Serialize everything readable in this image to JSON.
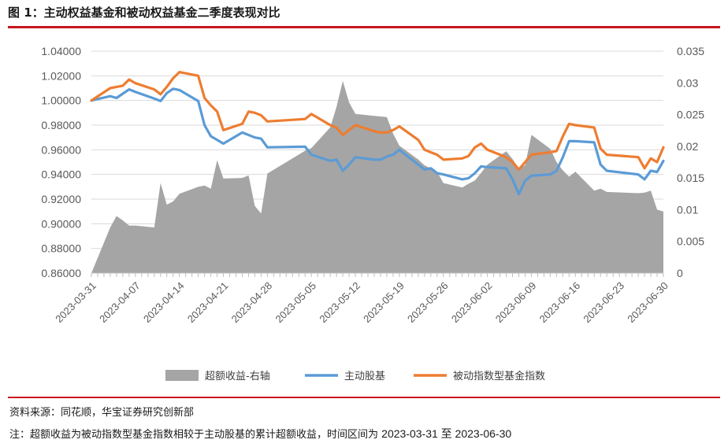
{
  "figure": {
    "title": "图 1：主动权益基金和被动权益基金二季度表现对比",
    "source": "资料来源：同花顺，华宝证券研究创新部",
    "note_prefix": "注：超额收益为被动指数型基金指数相较于主动股基的累计超额收益，时间区间为",
    "note_range": "2023-03-31 至 2023-06-30"
  },
  "chart_data": {
    "type": "line",
    "x_tick_labels": [
      "2023-03-31",
      "2023-04-07",
      "2023-04-14",
      "2023-04-21",
      "2023-04-28",
      "2023-05-05",
      "2023-05-12",
      "2023-05-19",
      "2023-05-26",
      "2023-06-02",
      "2023-06-09",
      "2023-06-16",
      "2023-06-23",
      "2023-06-30"
    ],
    "x_dates": [
      "2023-03-31",
      "2023-04-03",
      "2023-04-04",
      "2023-04-05",
      "2023-04-06",
      "2023-04-07",
      "2023-04-10",
      "2023-04-11",
      "2023-04-12",
      "2023-04-13",
      "2023-04-14",
      "2023-04-17",
      "2023-04-18",
      "2023-04-19",
      "2023-04-20",
      "2023-04-21",
      "2023-04-24",
      "2023-04-25",
      "2023-04-26",
      "2023-04-27",
      "2023-04-28",
      "2023-05-04",
      "2023-05-05",
      "2023-05-08",
      "2023-05-09",
      "2023-05-10",
      "2023-05-11",
      "2023-05-12",
      "2023-05-15",
      "2023-05-16",
      "2023-05-17",
      "2023-05-18",
      "2023-05-19",
      "2023-05-22",
      "2023-05-23",
      "2023-05-24",
      "2023-05-25",
      "2023-05-26",
      "2023-05-29",
      "2023-05-30",
      "2023-05-31",
      "2023-06-01",
      "2023-06-02",
      "2023-06-05",
      "2023-06-06",
      "2023-06-07",
      "2023-06-08",
      "2023-06-09",
      "2023-06-12",
      "2023-06-13",
      "2023-06-14",
      "2023-06-15",
      "2023-06-16",
      "2023-06-19",
      "2023-06-20",
      "2023-06-21",
      "2023-06-26",
      "2023-06-27",
      "2023-06-28",
      "2023-06-29",
      "2023-06-30"
    ],
    "y_left": {
      "ticks": [
        "0.86000",
        "0.88000",
        "0.90000",
        "0.92000",
        "0.94000",
        "0.96000",
        "0.98000",
        "1.00000",
        "1.02000",
        "1.04000"
      ],
      "min": 0.86,
      "max": 1.04
    },
    "y_right": {
      "ticks": [
        "0",
        "0.005",
        "0.01",
        "0.015",
        "0.02",
        "0.025",
        "0.03",
        "0.035"
      ],
      "min": 0,
      "max": 0.035
    },
    "grid": "horizontal",
    "legend_position": "bottom",
    "series": [
      {
        "name": "超额收益-右轴",
        "kind": "area",
        "axis": "right",
        "color": "#a5a5a5",
        "values": [
          0,
          0.0072,
          0.009,
          0.0083,
          0.0075,
          0.0075,
          0.0072,
          0.0142,
          0.0108,
          0.0113,
          0.0125,
          0.0136,
          0.0138,
          0.0133,
          0.0178,
          0.0149,
          0.015,
          0.0154,
          0.0106,
          0.0094,
          0.0157,
          0.0193,
          0.0197,
          0.023,
          0.0262,
          0.0303,
          0.0269,
          0.0251,
          0.0248,
          0.0247,
          0.0246,
          0.022,
          0.0201,
          0.0179,
          0.017,
          0.0165,
          0.016,
          0.0142,
          0.0135,
          0.0141,
          0.0146,
          0.0158,
          0.0171,
          0.0192,
          0.018,
          0.0165,
          0.017,
          0.0218,
          0.0196,
          0.0175,
          0.0162,
          0.0152,
          0.016,
          0.013,
          0.0133,
          0.0128,
          0.0126,
          0.0127,
          0.013,
          0.01,
          0.0097
        ]
      },
      {
        "name": "主动股基",
        "kind": "line",
        "axis": "left",
        "color": "#5b9bd5",
        "values": [
          1.0,
          1.0035,
          1.002,
          1.0055,
          1.009,
          1.007,
          1.0015,
          0.9995,
          1.006,
          1.0095,
          1.0085,
          0.9995,
          0.98,
          0.971,
          0.968,
          0.965,
          0.974,
          0.972,
          0.97,
          0.969,
          0.962,
          0.9625,
          0.956,
          0.951,
          0.952,
          0.943,
          0.948,
          0.954,
          0.952,
          0.952,
          0.9545,
          0.956,
          0.96,
          0.948,
          0.944,
          0.945,
          0.941,
          0.94,
          0.936,
          0.937,
          0.941,
          0.9465,
          0.946,
          0.945,
          0.936,
          0.924,
          0.935,
          0.939,
          0.94,
          0.943,
          0.954,
          0.967,
          0.967,
          0.966,
          0.948,
          0.943,
          0.94,
          0.936,
          0.943,
          0.942,
          0.951
        ]
      },
      {
        "name": "被动指数型基金指数",
        "kind": "line",
        "axis": "left",
        "color": "#ed7d31",
        "values": [
          1.0,
          1.01,
          1.011,
          1.012,
          1.017,
          1.014,
          1.009,
          1.005,
          1.011,
          1.018,
          1.023,
          1.02,
          1.002,
          0.996,
          0.991,
          0.976,
          0.981,
          0.991,
          0.99,
          0.988,
          0.983,
          0.985,
          0.989,
          0.98,
          0.978,
          0.972,
          0.976,
          0.98,
          0.975,
          0.974,
          0.974,
          0.976,
          0.979,
          0.968,
          0.96,
          0.958,
          0.956,
          0.952,
          0.953,
          0.955,
          0.962,
          0.965,
          0.96,
          0.954,
          0.95,
          0.944,
          0.95,
          0.956,
          0.958,
          0.959,
          0.971,
          0.981,
          0.98,
          0.978,
          0.961,
          0.956,
          0.954,
          0.945,
          0.953,
          0.95,
          0.962
        ]
      }
    ]
  }
}
